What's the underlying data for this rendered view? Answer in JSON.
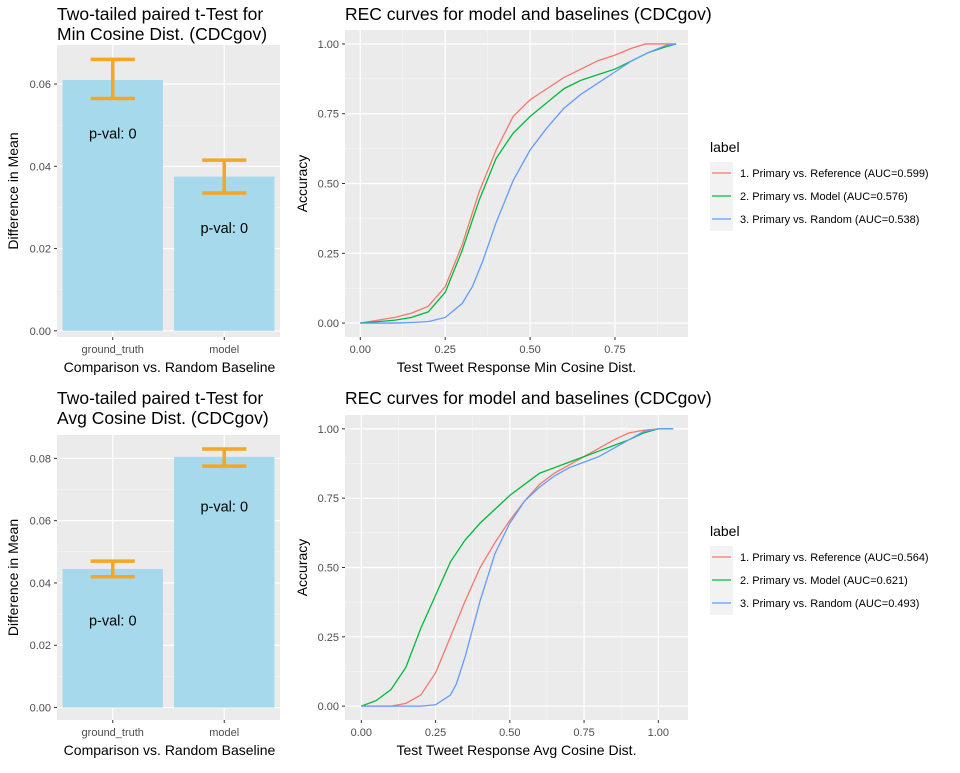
{
  "chart_data": [
    {
      "type": "bar",
      "title": "Two-tailed paired t-Test for\nMin Cosine Dist. (CDCgov)",
      "xlabel": "Comparison vs. Random Baseline",
      "ylabel": "Difference in Mean",
      "categories": [
        "ground_truth",
        "model"
      ],
      "values": [
        0.061,
        0.0375
      ],
      "error_low": [
        0.0565,
        0.0335
      ],
      "error_high": [
        0.066,
        0.0415
      ],
      "annotations": [
        "p-val: 0",
        "p-val: 0"
      ],
      "annotation_y": [
        0.048,
        0.025
      ],
      "ylim": [
        -0.0015,
        0.0695
      ],
      "yticks": [
        0.0,
        0.02,
        0.04,
        0.06
      ],
      "ytick_labels": [
        "0.00",
        "0.02",
        "0.04",
        "0.06"
      ],
      "bar_color": "#a6d9ec",
      "error_color": "#f5a623"
    },
    {
      "type": "line",
      "title": "REC curves for model and baselines (CDCgov)",
      "xlabel": "Test Tweet Response Min Cosine Dist.",
      "ylabel": "Accuracy",
      "xlim": [
        -0.045,
        0.965
      ],
      "ylim": [
        -0.05,
        1.05
      ],
      "xticks": [
        0.0,
        0.25,
        0.5,
        0.75
      ],
      "xtick_labels": [
        "0.00",
        "0.25",
        "0.50",
        "0.75"
      ],
      "yticks": [
        0.0,
        0.25,
        0.5,
        0.75,
        1.0
      ],
      "ytick_labels": [
        "0.00",
        "0.25",
        "0.50",
        "0.75",
        "1.00"
      ],
      "legend_title": "label",
      "series": [
        {
          "name": "1. Primary vs. Reference (AUC=0.599)",
          "color": "#f8766d",
          "x": [
            0.0,
            0.1,
            0.15,
            0.2,
            0.25,
            0.3,
            0.35,
            0.4,
            0.45,
            0.5,
            0.55,
            0.6,
            0.65,
            0.7,
            0.75,
            0.8,
            0.84,
            0.88,
            0.93
          ],
          "y": [
            0.0,
            0.02,
            0.035,
            0.06,
            0.13,
            0.28,
            0.47,
            0.62,
            0.74,
            0.8,
            0.84,
            0.88,
            0.91,
            0.94,
            0.96,
            0.985,
            1.0,
            1.0,
            1.0
          ]
        },
        {
          "name": "2. Primary vs. Model (AUC=0.576)",
          "color": "#00ba38",
          "x": [
            0.0,
            0.1,
            0.15,
            0.2,
            0.25,
            0.3,
            0.35,
            0.4,
            0.45,
            0.5,
            0.55,
            0.6,
            0.65,
            0.7,
            0.75,
            0.8,
            0.85,
            0.9,
            0.93
          ],
          "y": [
            0.0,
            0.01,
            0.02,
            0.04,
            0.11,
            0.26,
            0.44,
            0.59,
            0.68,
            0.74,
            0.79,
            0.84,
            0.87,
            0.89,
            0.91,
            0.94,
            0.97,
            0.99,
            1.0
          ]
        },
        {
          "name": "3. Primary vs. Random (AUC=0.538)",
          "color": "#619cff",
          "x": [
            0.0,
            0.1,
            0.15,
            0.2,
            0.25,
            0.3,
            0.33,
            0.36,
            0.4,
            0.45,
            0.5,
            0.55,
            0.6,
            0.65,
            0.7,
            0.75,
            0.8,
            0.85,
            0.9,
            0.93
          ],
          "y": [
            0.0,
            0.0,
            0.002,
            0.005,
            0.02,
            0.07,
            0.13,
            0.22,
            0.36,
            0.51,
            0.62,
            0.7,
            0.77,
            0.82,
            0.86,
            0.9,
            0.94,
            0.97,
            0.995,
            1.0
          ]
        }
      ]
    },
    {
      "type": "bar",
      "title": "Two-tailed paired t-Test for\nAvg Cosine Dist. (CDCgov)",
      "xlabel": "Comparison vs. Random Baseline",
      "ylabel": "Difference in Mean",
      "categories": [
        "ground_truth",
        "model"
      ],
      "values": [
        0.0445,
        0.0805
      ],
      "error_low": [
        0.042,
        0.0775
      ],
      "error_high": [
        0.047,
        0.083
      ],
      "annotations": [
        "p-val: 0",
        "p-val: 0"
      ],
      "annotation_y": [
        0.028,
        0.0645
      ],
      "ylim": [
        -0.004,
        0.0875
      ],
      "yticks": [
        0.0,
        0.02,
        0.04,
        0.06,
        0.08
      ],
      "ytick_labels": [
        "0.00",
        "0.02",
        "0.04",
        "0.06",
        "0.08"
      ],
      "bar_color": "#a6d9ec",
      "error_color": "#f5a623"
    },
    {
      "type": "line",
      "title": "REC curves for model and baselines (CDCgov)",
      "xlabel": "Test Tweet Response Avg Cosine Dist.",
      "ylabel": "Accuracy",
      "xlim": [
        -0.055,
        1.1
      ],
      "ylim": [
        -0.05,
        1.05
      ],
      "xticks": [
        0.0,
        0.25,
        0.5,
        0.75,
        1.0
      ],
      "xtick_labels": [
        "0.00",
        "0.25",
        "0.50",
        "0.75",
        "1.00"
      ],
      "yticks": [
        0.0,
        0.25,
        0.5,
        0.75,
        1.0
      ],
      "ytick_labels": [
        "0.00",
        "0.25",
        "0.50",
        "0.75",
        "1.00"
      ],
      "legend_title": "label",
      "series": [
        {
          "name": "1. Primary vs. Reference (AUC=0.564)",
          "color": "#f8766d",
          "x": [
            0.0,
            0.1,
            0.15,
            0.2,
            0.25,
            0.3,
            0.35,
            0.4,
            0.45,
            0.5,
            0.55,
            0.6,
            0.65,
            0.7,
            0.75,
            0.8,
            0.85,
            0.9,
            0.95,
            1.0,
            1.05
          ],
          "y": [
            0.0,
            0.0,
            0.01,
            0.04,
            0.12,
            0.25,
            0.38,
            0.5,
            0.59,
            0.67,
            0.74,
            0.8,
            0.84,
            0.87,
            0.9,
            0.93,
            0.96,
            0.985,
            0.995,
            1.0,
            1.0
          ]
        },
        {
          "name": "2. Primary vs. Model (AUC=0.621)",
          "color": "#00ba38",
          "x": [
            0.0,
            0.05,
            0.1,
            0.15,
            0.2,
            0.25,
            0.3,
            0.35,
            0.4,
            0.45,
            0.5,
            0.55,
            0.6,
            0.65,
            0.7,
            0.75,
            0.8,
            0.85,
            0.9,
            0.95,
            1.0,
            1.05
          ],
          "y": [
            0.0,
            0.02,
            0.06,
            0.14,
            0.28,
            0.4,
            0.52,
            0.6,
            0.66,
            0.71,
            0.76,
            0.8,
            0.84,
            0.86,
            0.88,
            0.9,
            0.92,
            0.94,
            0.96,
            0.985,
            1.0,
            1.0
          ]
        },
        {
          "name": "3. Primary vs. Random (AUC=0.493)",
          "color": "#619cff",
          "x": [
            0.0,
            0.1,
            0.2,
            0.25,
            0.3,
            0.32,
            0.35,
            0.4,
            0.45,
            0.5,
            0.55,
            0.6,
            0.65,
            0.7,
            0.75,
            0.8,
            0.85,
            0.9,
            0.95,
            1.0,
            1.05
          ],
          "y": [
            0.0,
            0.0,
            0.0,
            0.005,
            0.04,
            0.08,
            0.18,
            0.38,
            0.55,
            0.66,
            0.74,
            0.79,
            0.83,
            0.86,
            0.88,
            0.9,
            0.93,
            0.96,
            0.99,
            1.0,
            1.0
          ]
        }
      ]
    }
  ]
}
